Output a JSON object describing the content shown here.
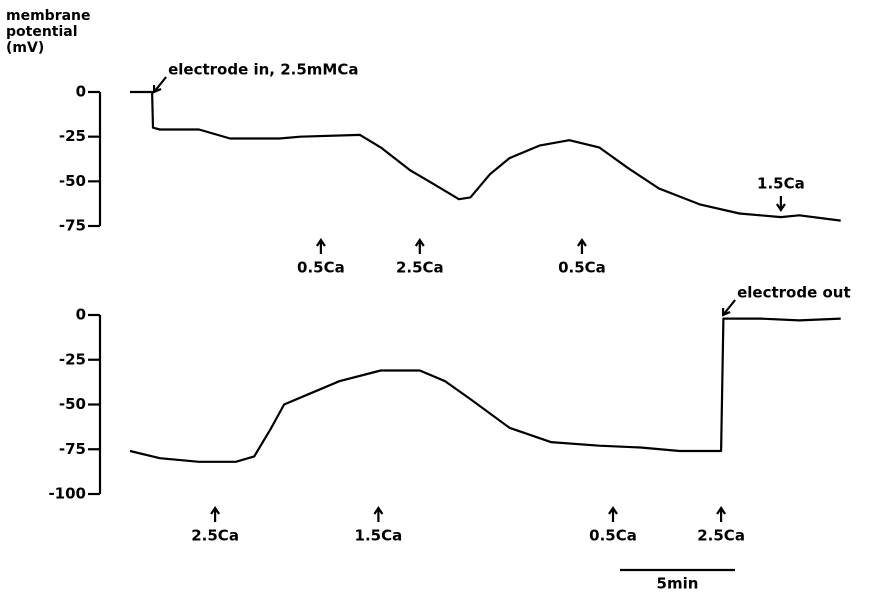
{
  "chart_data": [
    {
      "type": "line",
      "y_label": [
        "membrane",
        "potential",
        "(mV)"
      ],
      "xlim": [
        0,
        31
      ],
      "ylim": [
        -75,
        0
      ],
      "yticks": [
        0,
        -25,
        -50,
        -75
      ],
      "color": "#000000",
      "x": [
        0,
        0.96,
        1.0,
        1.3,
        3.0,
        4.35,
        6.5,
        7.4,
        10.0,
        10.9,
        12.2,
        13.0,
        14.3,
        14.8,
        15.65,
        16.5,
        17.8,
        19.1,
        20.4,
        21.7,
        23.0,
        24.8,
        26.5,
        28.3,
        29.1,
        30.9
      ],
      "values": [
        0,
        0,
        -20,
        -21,
        -21,
        -26,
        -26,
        -25,
        -24,
        -31,
        -44,
        -50,
        -60,
        -59,
        -46,
        -37,
        -30,
        -27,
        -31,
        -43,
        -54,
        -63,
        -68,
        -70,
        -69,
        -72
      ],
      "annotations": [
        {
          "text": "electrode in, 2.5mMCa",
          "x": 0.96,
          "arrow": "diagonal"
        },
        {
          "text": "0.5Ca",
          "x": 8.3,
          "arrow": "up"
        },
        {
          "text": "2.5Ca",
          "x": 12.6,
          "arrow": "up"
        },
        {
          "text": "0.5Ca",
          "x": 19.65,
          "arrow": "up"
        },
        {
          "text": "1.5Ca",
          "x": 28.3,
          "arrow": "down"
        }
      ]
    },
    {
      "type": "line",
      "xlim": [
        0,
        31
      ],
      "ylim": [
        -100,
        0
      ],
      "yticks": [
        0,
        -25,
        -50,
        -75,
        -100
      ],
      "color": "#000000",
      "x": [
        0,
        1.3,
        3.0,
        4.6,
        5.4,
        6.1,
        6.7,
        7.8,
        9.1,
        10.9,
        12.6,
        13.7,
        14.8,
        16.5,
        18.3,
        20.4,
        22.2,
        23.9,
        25.7,
        25.8,
        27.4,
        29.1,
        30.9
      ],
      "values": [
        -76,
        -80,
        -82,
        -82,
        -79,
        -64,
        -50,
        -44,
        -37,
        -31,
        -31,
        -37,
        -47,
        -63,
        -71,
        -73,
        -74,
        -76,
        -76,
        -2,
        -2,
        -3,
        -2
      ],
      "annotations": [
        {
          "text": "2.5Ca",
          "x": 3.7,
          "arrow": "up"
        },
        {
          "text": "1.5Ca",
          "x": 10.8,
          "arrow": "up"
        },
        {
          "text": "0.5Ca",
          "x": 21.0,
          "arrow": "up"
        },
        {
          "text": "2.5Ca",
          "x": 25.7,
          "arrow": "up"
        },
        {
          "text": "electrode out",
          "x": 25.7,
          "arrow": "diagonal"
        }
      ]
    }
  ],
  "scale_bar": {
    "label": "5min",
    "value": 5
  }
}
